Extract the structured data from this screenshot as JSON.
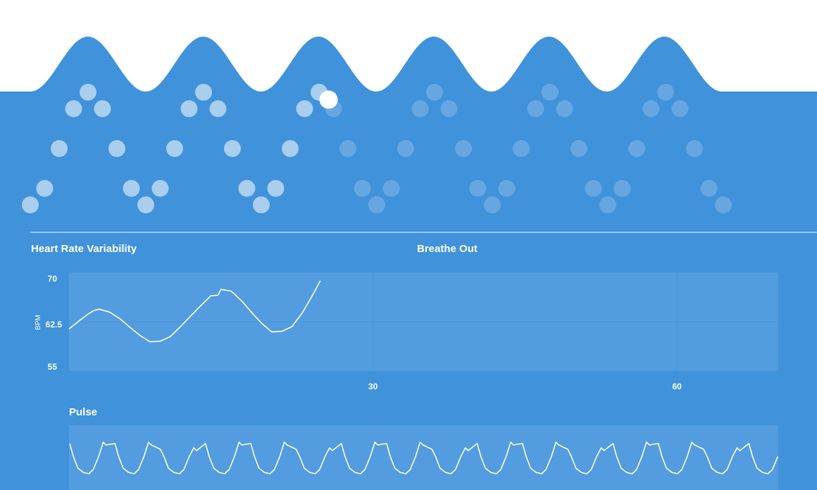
{
  "colors": {
    "background_blue": "#4092da",
    "panel_fill": "#529cdf",
    "white": "#ffffff"
  },
  "breathing_guide": {
    "phase_label": "Breathe Out",
    "cycles": 6,
    "completed_fraction": 0.42
  },
  "hrv_chart": {
    "title": "Heart Rate Variability",
    "ylabel": "BPM",
    "ylim": [
      55,
      70
    ],
    "yticks": [
      "70",
      "62.5",
      "55"
    ],
    "xlim": [
      0,
      70
    ],
    "xticks": [
      "30",
      "60"
    ]
  },
  "pulse_chart": {
    "title": "Pulse"
  },
  "chart_data": [
    {
      "type": "line",
      "title": "Heart Rate Variability",
      "xlabel": "",
      "ylabel": "BPM",
      "ylim": [
        55,
        70
      ],
      "xlim": [
        0,
        70
      ],
      "series": [
        {
          "name": "HRV",
          "x": [
            0,
            1,
            2,
            2.5,
            3,
            4,
            5,
            6,
            7,
            8,
            9,
            10,
            11,
            12,
            13,
            14,
            14.7,
            15,
            16,
            17,
            18,
            19,
            20,
            21,
            22,
            23,
            24,
            24.8
          ],
          "values": [
            61.5,
            62.9,
            64.2,
            64.7,
            64.9,
            64.4,
            63.3,
            61.8,
            60.4,
            59.3,
            59.4,
            60.2,
            61.9,
            63.7,
            65.5,
            67.2,
            67.3,
            68.3,
            68.0,
            66.4,
            64.4,
            62.5,
            61.0,
            61.1,
            61.9,
            64.2,
            67.2,
            69.8
          ]
        }
      ]
    },
    {
      "type": "line",
      "title": "Pulse",
      "xlabel": "",
      "ylabel": "",
      "series": [
        {
          "name": "Pulse",
          "beats": 16
        }
      ]
    }
  ]
}
